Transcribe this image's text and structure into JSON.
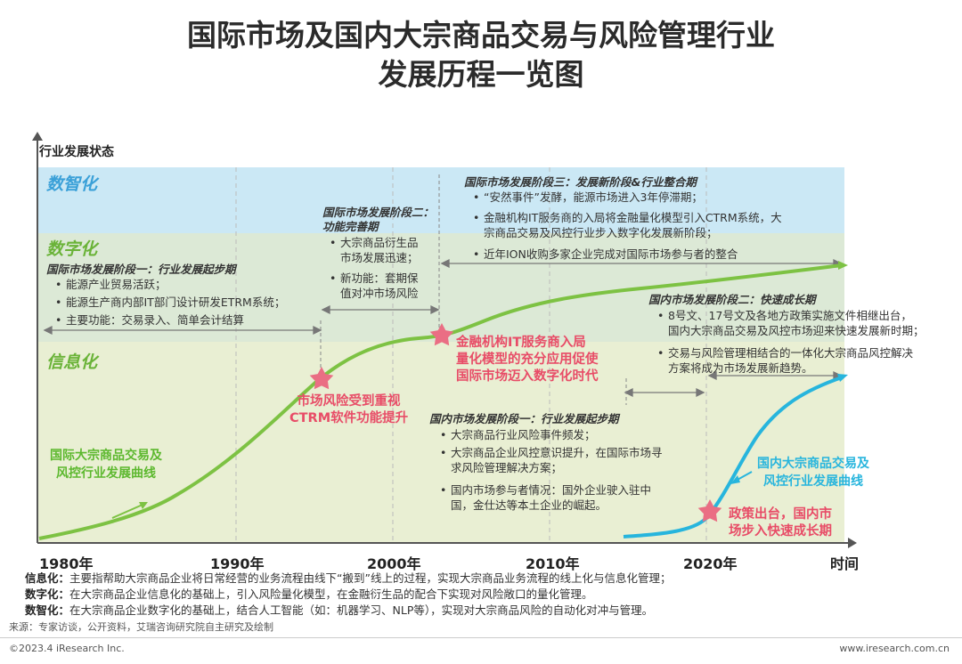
{
  "title": {
    "line1": "国际市场及国内大宗商品交易与风险管理行业",
    "line2": "发展历程一览图"
  },
  "y_axis_label": "行业发展状态",
  "x_axis_label": "时间",
  "years": [
    "1980年",
    "1990年",
    "2000年",
    "2010年",
    "2020年"
  ],
  "bands": {
    "top": "数智化",
    "mid": "数字化",
    "low": "信息化"
  },
  "colors": {
    "band_top": "#cbe8f5",
    "band_mid": "#dce9d6",
    "band_low": "#e9efd3",
    "green_curve": "#7dc243",
    "blue_curve": "#27b5dd",
    "star": "#ea6e84",
    "band_label": "#3aa0d8",
    "band_label_green": "#6ab338"
  },
  "intl_stage1": {
    "heading": "国际市场发展阶段一：行业发展起步期",
    "items": [
      "能源产业贸易活跃；",
      "能源生产商内部IT部门设计研发ETRM系统；",
      "主要功能：交易录入、简单会计结算"
    ]
  },
  "intl_stage2": {
    "heading_l1": "国际市场发展阶段二：",
    "heading_l2": "功能完善期",
    "items": [
      "大宗商品衍生品\n市场发展迅速；",
      "新功能：套期保\n值对冲市场风险"
    ]
  },
  "intl_stage3": {
    "heading": "国际市场发展阶段三：发展新阶段&行业整合期",
    "items": [
      "“安然事件”发酵，能源市场进入3年停滞期；",
      "金融机构IT服务商的入局将金融量化模型引入CTRM系统，大\n宗商品交易及风控行业步入数字化发展新阶段；",
      "近年ION收购多家企业完成对国际市场参与者的整合"
    ]
  },
  "dom_stage1": {
    "heading": "国内市场发展阶段一：行业发展起步期",
    "items": [
      "大宗商品行业风险事件频发；",
      "大宗商品企业风控意识提升，在国际市场寻\n求风险管理解决方案；",
      "国内市场参与者情况：国外企业驶入驻中\n国，金仕达等本土企业的崛起。"
    ]
  },
  "dom_stage2": {
    "heading": "国内市场发展阶段二：快速成长期",
    "items": [
      "8号文、17号文及各地方政策实施文件相继出台，\n国内大宗商品交易及风控市场迎来快速发展新时期；",
      "交易与风险管理相结合的一体化大宗商品风控解决\n方案将成为市场发展新趋势。"
    ]
  },
  "milestones": {
    "m1": "市场风险受到重视\nCTRM软件功能提升",
    "m2": "金融机构IT服务商入局\n量化模型的充分应用促使\n国际市场迈入数字化时代",
    "m3": "政策出台，国内市\n场步入快速成长期"
  },
  "curve_labels": {
    "intl": "国际大宗商品交易及\n风控行业发展曲线",
    "domestic": "国内大宗商品交易及\n风控行业发展曲线"
  },
  "definitions": [
    {
      "term": "信息化：",
      "text": "主要指帮助大宗商品企业将日常经营的业务流程由线下“搬到”线上的过程，实现大宗商品业务流程的线上化与信息化管理；"
    },
    {
      "term": "数字化：",
      "text": "在大宗商品企业信息化的基础上，引入风险量化模型，在金融衍生品的配合下实现对风险敞口的量化管理。"
    },
    {
      "term": "数智化：",
      "text": "在大宗商品企业数字化的基础上，结合人工智能（如：机器学习、NLP等），实现对大宗商品风险的自动化对冲与管理。"
    }
  ],
  "source": "来源：专家访谈，公开资料，艾瑞咨询研究院自主研究及绘制",
  "footer_left": "©2023.4 iResearch Inc.",
  "footer_right": "www.iresearch.com.cn"
}
